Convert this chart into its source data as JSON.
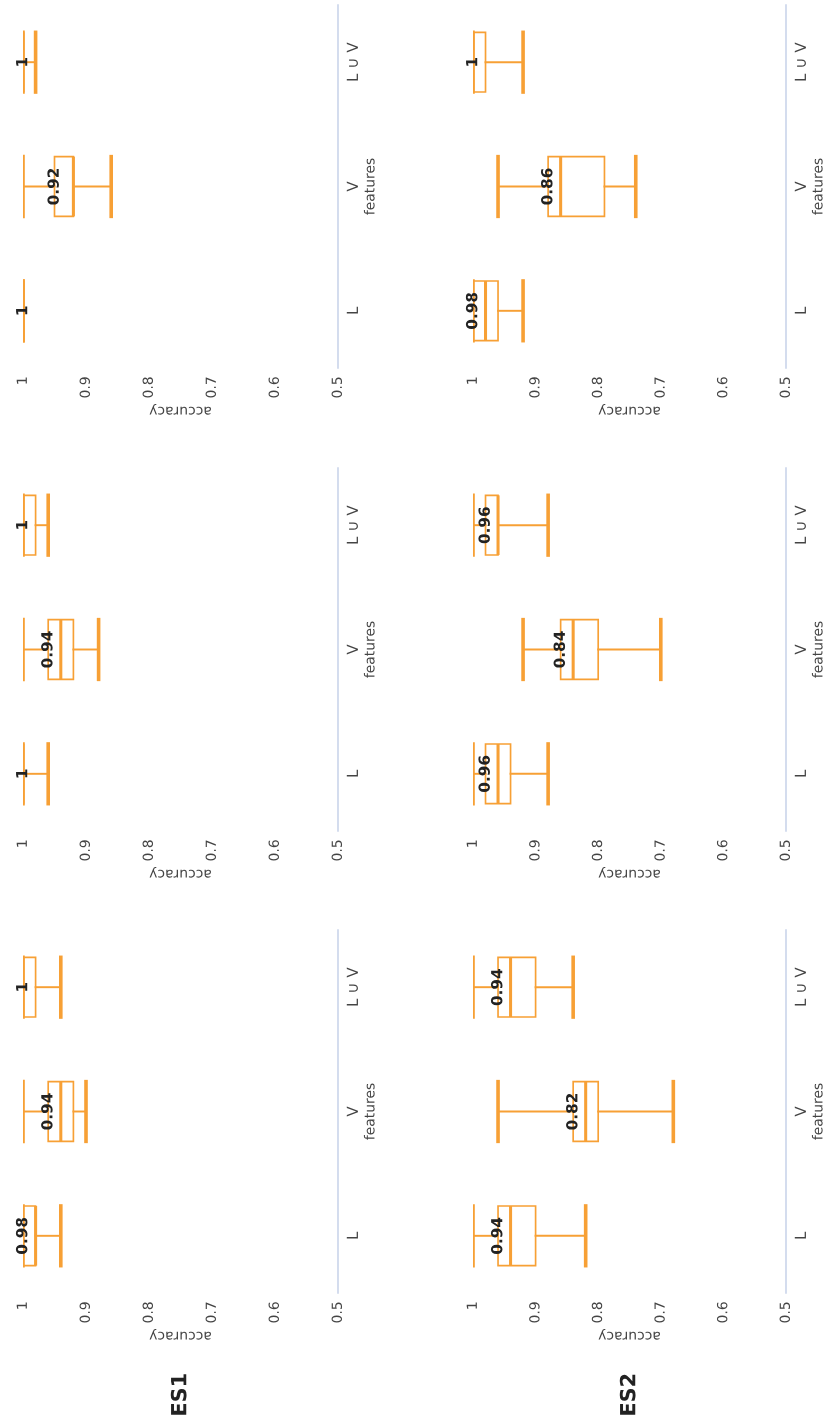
{
  "chart_data": [
    {
      "type": "box",
      "orientation": "horizontal",
      "categories": [
        "L ∪ V",
        "V",
        "L"
      ],
      "xlabel": "accuracy",
      "ylabel": "features",
      "xlim": [
        1,
        0.5
      ],
      "xticks": [
        1,
        0.9,
        0.8,
        0.7,
        0.6,
        0.5
      ],
      "color": "#f7a035",
      "grid": false,
      "boxes": [
        {
          "low": 0.98,
          "q1": 1,
          "median": 1,
          "q3": 1,
          "high": 1
        },
        {
          "low": 0.86,
          "q1": 0.92,
          "median": 0.92,
          "q3": 0.95,
          "high": 1
        },
        {
          "low": 1,
          "q1": 1,
          "median": 1,
          "q3": 1,
          "high": 1
        }
      ],
      "value_labels": [
        "1",
        "0.92",
        "1"
      ]
    },
    {
      "type": "box",
      "orientation": "horizontal",
      "categories": [
        "L ∪ V",
        "V",
        "L"
      ],
      "xlabel": "accuracy",
      "ylabel": "features",
      "xlim": [
        1,
        0.5
      ],
      "xticks": [
        1,
        0.9,
        0.8,
        0.7,
        0.6,
        0.5
      ],
      "color": "#f7a035",
      "grid": false,
      "boxes": [
        {
          "low": 0.92,
          "q1": 0.98,
          "median": 1,
          "q3": 1,
          "high": 1
        },
        {
          "low": 0.74,
          "q1": 0.79,
          "median": 0.86,
          "q3": 0.88,
          "high": 0.96
        },
        {
          "low": 0.92,
          "q1": 0.96,
          "median": 0.98,
          "q3": 1,
          "high": 1
        }
      ],
      "value_labels": [
        "1",
        "0.86",
        "0.98"
      ]
    },
    {
      "type": "box",
      "orientation": "horizontal",
      "categories": [
        "L ∪ V",
        "V",
        "L"
      ],
      "xlabel": "accuracy",
      "ylabel": "features",
      "xlim": [
        1,
        0.5
      ],
      "xticks": [
        1,
        0.9,
        0.8,
        0.7,
        0.6,
        0.5
      ],
      "color": "#f7a035",
      "grid": false,
      "boxes": [
        {
          "low": 0.96,
          "q1": 0.98,
          "median": 1,
          "q3": 1,
          "high": 1
        },
        {
          "low": 0.88,
          "q1": 0.92,
          "median": 0.94,
          "q3": 0.96,
          "high": 1
        },
        {
          "low": 0.96,
          "q1": 1,
          "median": 1,
          "q3": 1,
          "high": 1
        }
      ],
      "value_labels": [
        "1",
        "0.94",
        "1"
      ]
    },
    {
      "type": "box",
      "orientation": "horizontal",
      "categories": [
        "L ∪ V",
        "V",
        "L"
      ],
      "xlabel": "accuracy",
      "ylabel": "features",
      "xlim": [
        1,
        0.5
      ],
      "xticks": [
        1,
        0.9,
        0.8,
        0.7,
        0.6,
        0.5
      ],
      "color": "#f7a035",
      "grid": false,
      "boxes": [
        {
          "low": 0.88,
          "q1": 0.96,
          "median": 0.96,
          "q3": 0.98,
          "high": 1
        },
        {
          "low": 0.7,
          "q1": 0.8,
          "median": 0.84,
          "q3": 0.86,
          "high": 0.92
        },
        {
          "low": 0.88,
          "q1": 0.94,
          "median": 0.96,
          "q3": 0.98,
          "high": 1
        }
      ],
      "value_labels": [
        "0.96",
        "0.84",
        "0.96"
      ]
    },
    {
      "type": "box",
      "orientation": "horizontal",
      "categories": [
        "L ∪ V",
        "V",
        "L"
      ],
      "xlabel": "accuracy",
      "ylabel": "features",
      "xlim": [
        1,
        0.5
      ],
      "xticks": [
        1,
        0.9,
        0.8,
        0.7,
        0.6,
        0.5
      ],
      "color": "#f7a035",
      "grid": false,
      "boxes": [
        {
          "low": 0.94,
          "q1": 0.98,
          "median": 1,
          "q3": 1,
          "high": 1
        },
        {
          "low": 0.9,
          "q1": 0.92,
          "median": 0.94,
          "q3": 0.96,
          "high": 1
        },
        {
          "low": 0.94,
          "q1": 0.98,
          "median": 0.98,
          "q3": 1,
          "high": 1
        }
      ],
      "value_labels": [
        "1",
        "0.94",
        "0.98"
      ],
      "annotations": [
        "ES1"
      ]
    },
    {
      "type": "box",
      "orientation": "horizontal",
      "categories": [
        "L ∪ V",
        "V",
        "L"
      ],
      "xlabel": "accuracy",
      "ylabel": "features",
      "xlim": [
        1,
        0.5
      ],
      "xticks": [
        1,
        0.9,
        0.8,
        0.7,
        0.6,
        0.5
      ],
      "color": "#f7a035",
      "grid": false,
      "boxes": [
        {
          "low": 0.84,
          "q1": 0.9,
          "median": 0.94,
          "q3": 0.96,
          "high": 1
        },
        {
          "low": 0.68,
          "q1": 0.8,
          "median": 0.82,
          "q3": 0.84,
          "high": 0.96
        },
        {
          "low": 0.82,
          "q1": 0.9,
          "median": 0.94,
          "q3": 0.96,
          "high": 1
        }
      ],
      "value_labels": [
        "0.94",
        "0.82",
        "0.94"
      ],
      "annotations": [
        "ES2"
      ]
    }
  ]
}
